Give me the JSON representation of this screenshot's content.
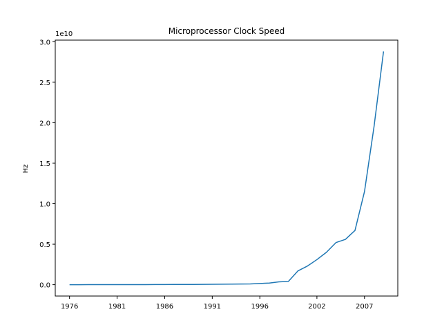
{
  "chart_data": {
    "type": "line",
    "title": "Microprocessor Clock Speed",
    "xlabel": "",
    "ylabel": "Hz",
    "y_offset_label": "1e10",
    "x_tick_labels": [
      "1976",
      "1981",
      "1986",
      "1991",
      "1996",
      "2002",
      "2007"
    ],
    "y_tick_labels": [
      "0.0",
      "0.5",
      "1.0",
      "1.5",
      "2.0",
      "2.5",
      "3.0"
    ],
    "xlim": [
      1974.5,
      2010.5
    ],
    "ylim": [
      -1400000000.0,
      30200000000.0
    ],
    "grid": false,
    "color": "#1f77b4",
    "series": [
      {
        "x": [
          1976,
          1977,
          1978,
          1979,
          1980,
          1981,
          1982,
          1983,
          1984,
          1985,
          1986,
          1987,
          1988,
          1989,
          1990,
          1991,
          1992,
          1993,
          1994,
          1995,
          1996,
          1997,
          1998,
          1999,
          2000,
          2001,
          2002,
          2003,
          2004,
          2005,
          2006,
          2007,
          2008,
          2009
        ],
        "values": [
          2000000,
          3000000,
          4000000,
          5000000,
          6000000,
          8000000,
          10000000,
          12000000,
          14000000,
          16000000,
          20000000,
          25000000,
          30000000,
          35000000,
          40000000,
          50000000,
          60000000,
          70000000,
          80000000,
          100000000,
          150000000,
          200000000,
          350000000,
          400000000,
          1700000000,
          2300000000,
          3100000000,
          4000000000,
          5200000000,
          5600000000,
          6700000000,
          11500000000,
          19500000000,
          28800000000
        ]
      }
    ]
  }
}
